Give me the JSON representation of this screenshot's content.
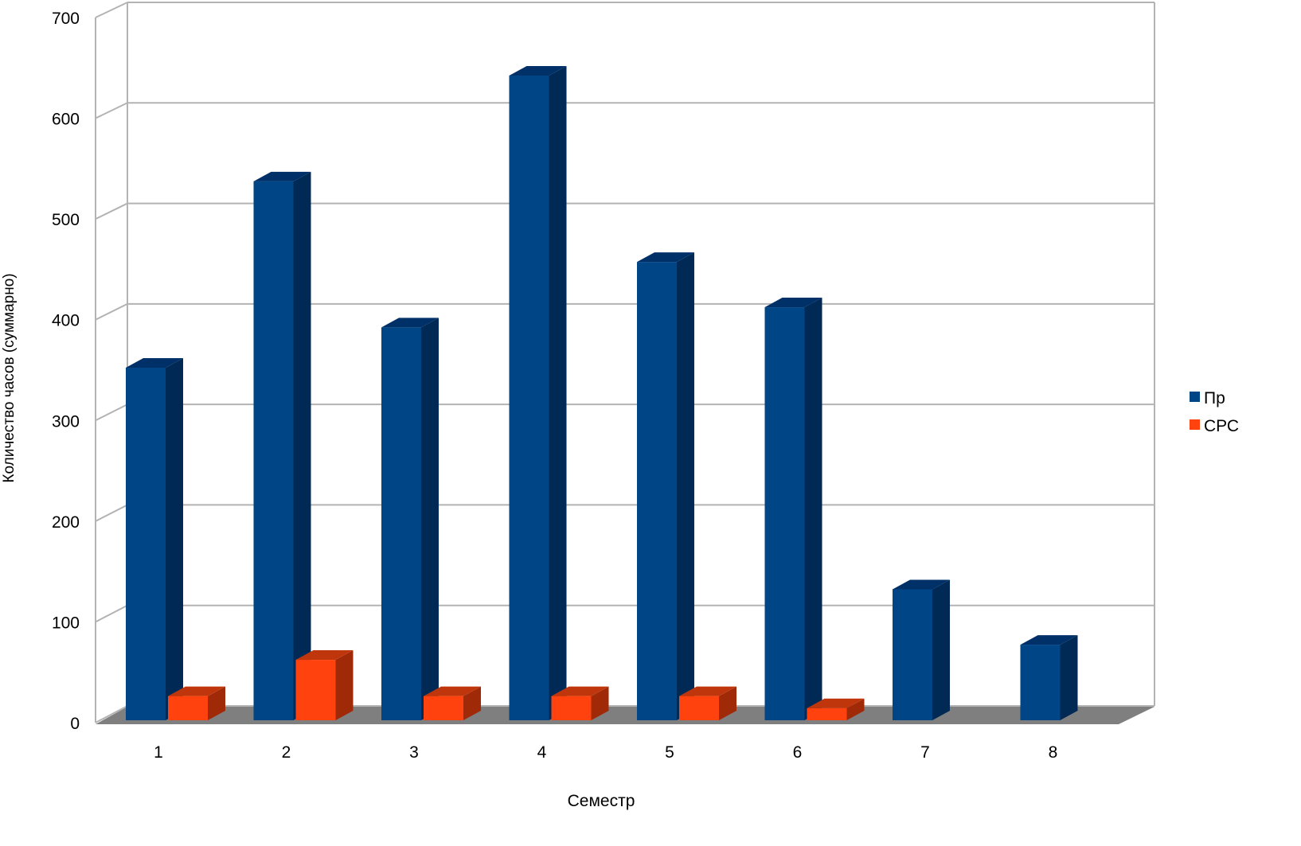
{
  "chart_data": {
    "type": "bar",
    "three_d": true,
    "title": "",
    "xlabel": "Семестр",
    "ylabel": "Количество часов (суммарно)",
    "ylim": [
      0,
      700
    ],
    "yticks": [
      0,
      100,
      200,
      300,
      400,
      500,
      600,
      700
    ],
    "grid": true,
    "legend_position": "right",
    "categories": [
      "1",
      "2",
      "3",
      "4",
      "5",
      "6",
      "7",
      "8"
    ],
    "series": [
      {
        "name": "Пр",
        "color": "#004586",
        "values": [
          350,
          535,
          390,
          640,
          455,
          410,
          130,
          75
        ]
      },
      {
        "name": "СРС",
        "color": "#ff420e",
        "values": [
          24,
          60,
          24,
          24,
          24,
          12,
          0,
          0
        ]
      }
    ]
  }
}
